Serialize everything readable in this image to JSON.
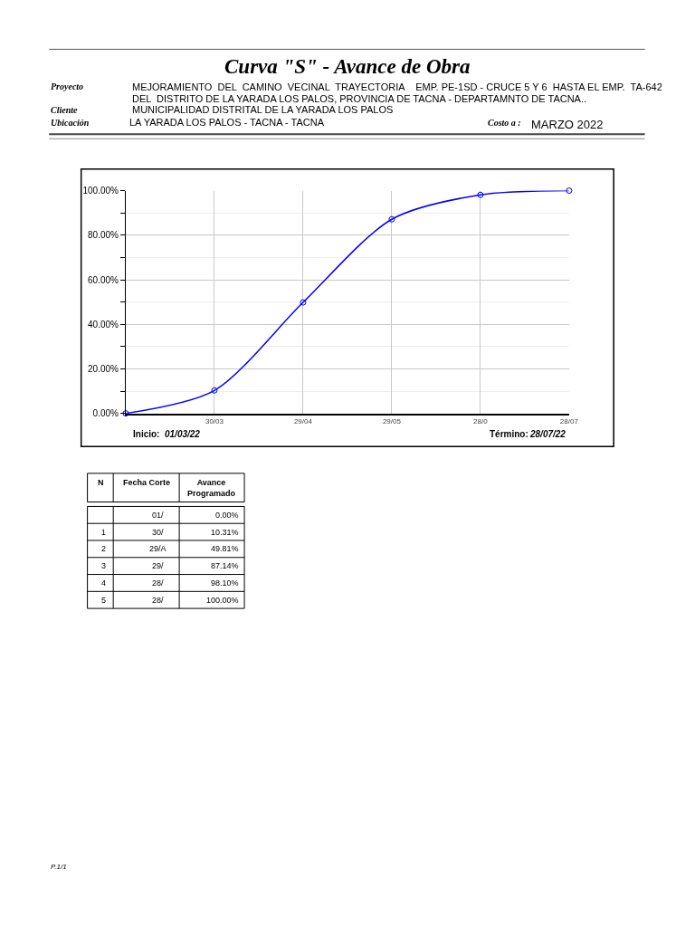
{
  "chart_data": {
    "type": "line",
    "title": "Curva \"S\" - Avance de Obra",
    "categories": [
      null,
      "30/03",
      "29/04",
      "29/05",
      "28/0",
      "28/07"
    ],
    "series": [
      {
        "color": "#0000ff",
        "values": [
          0,
          10.31,
          49.81,
          87.14,
          98.1,
          100
        ]
      }
    ],
    "ylim": [
      0,
      100
    ],
    "yticks": [
      {
        "value": 0,
        "label": "0.00%"
      },
      {
        "value": 20,
        "label": "20.00%"
      },
      {
        "value": 40,
        "label": "40.00%"
      },
      {
        "value": 60,
        "label": "60.00%"
      },
      {
        "value": 80,
        "label": "80.00%"
      },
      {
        "value": 100,
        "label": "100.00%"
      }
    ],
    "grid": true,
    "marker": "circle",
    "line_style": "solid",
    "annotations": [
      "Proyecto",
      "MEJORAMIENTO  DEL  CAMINO  VECINAL  TRAYECTORIA    EMP. PE-1SD - CRUCE 5 Y 6  HASTA EL EMP.  TA-642",
      "DEL  DISTRITO DE LA YARADA LOS PALOS, PROVINCIA DE TACNA - DEPARTAMNTO DE TACNA..",
      "Cliente",
      "MUNICIPALIDAD DISTRITAL DE LA YARADA LOS PALOS",
      "Ubicación",
      "LA YARADA LOS PALOS - TACNA - TACNA",
      "Costo a :",
      "MARZO 2022",
      "Inicio:",
      "01/03/22",
      "Término:",
      "28/07/22",
      "N",
      "Fecha Corte",
      "Avance\nProgramado",
      "1",
      "2",
      "3",
      "4",
      "5",
      "01/",
      "30/",
      "29/A",
      "29/",
      "28/",
      "28/",
      "0.00%",
      "10.31%",
      "49.81%",
      "87.14%",
      "98.10%",
      "100.00%",
      "P.1/1"
    ]
  }
}
